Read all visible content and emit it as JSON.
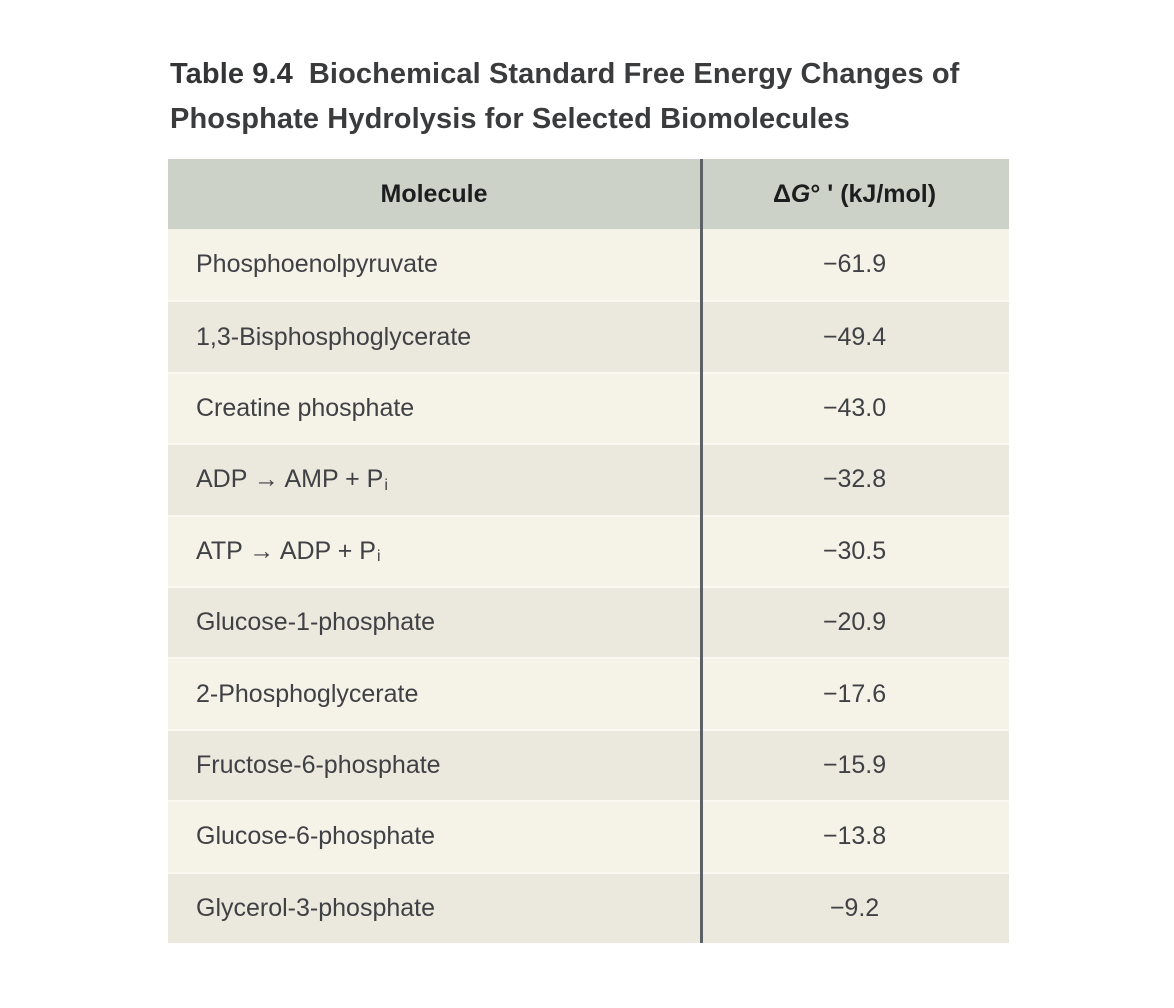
{
  "title": {
    "label": "Table 9.4",
    "text": "Biochemical Standard Free Energy Changes of Phosphate Hydrolysis for Selected Biomolecules"
  },
  "table": {
    "header": {
      "molecule": "Molecule",
      "dg": {
        "delta": "Δ",
        "g": "G",
        "rest": "° ' (kJ/mol)"
      }
    },
    "rows": [
      {
        "molecule": "Phosphoenolpyruvate",
        "sub": "",
        "value": "−61.9"
      },
      {
        "molecule": "1,3-Bisphosphoglycerate",
        "sub": "",
        "value": "−49.4"
      },
      {
        "molecule": "Creatine phosphate",
        "sub": "",
        "value": "−43.0"
      },
      {
        "molecule": "ADP → AMP + P",
        "sub": "i",
        "value": "−32.8"
      },
      {
        "molecule": "ATP → ADP + P",
        "sub": "i",
        "value": "−30.5"
      },
      {
        "molecule": "Glucose-1-phosphate",
        "sub": "",
        "value": "−20.9"
      },
      {
        "molecule": "2-Phosphoglycerate",
        "sub": "",
        "value": "−17.6"
      },
      {
        "molecule": "Fructose-6-phosphate",
        "sub": "",
        "value": "−15.9"
      },
      {
        "molecule": "Glucose-6-phosphate",
        "sub": "",
        "value": "−13.8"
      },
      {
        "molecule": "Glycerol-3-phosphate",
        "sub": "",
        "value": "−9.2"
      }
    ]
  },
  "colors": {
    "page_background": "#ffffff",
    "header_background": "#cdd2c8",
    "row_light": "#f5f2e8",
    "row_dark": "#ebe8dd",
    "divider": "#5d6167",
    "row_separator": "#faf8f1",
    "body_text": "#3f4144",
    "header_text": "#1c1d1f",
    "title_text": "#3a3b3d"
  }
}
